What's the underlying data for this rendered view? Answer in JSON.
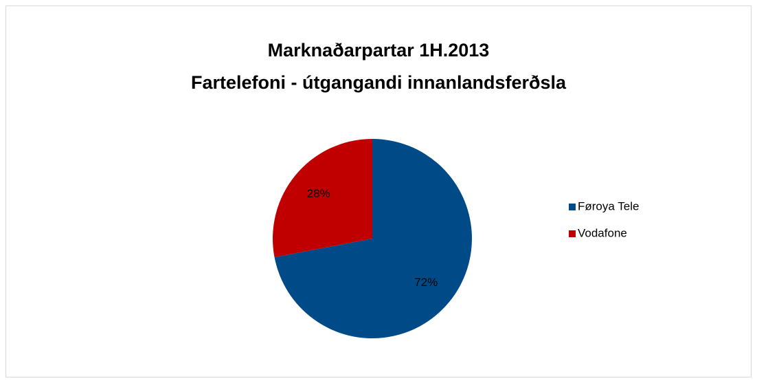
{
  "chart_data": {
    "type": "pie",
    "title": [
      "Marknaðarpartar 1H.2013",
      "Fartelefoni - útgangandi innanlandsferðsla"
    ],
    "categories": [
      "Føroya Tele",
      "Vodafone"
    ],
    "values": [
      72,
      28
    ],
    "value_labels": [
      "72%",
      "28%"
    ],
    "colors": [
      "#004b87",
      "#c00000"
    ],
    "legend": "right"
  }
}
